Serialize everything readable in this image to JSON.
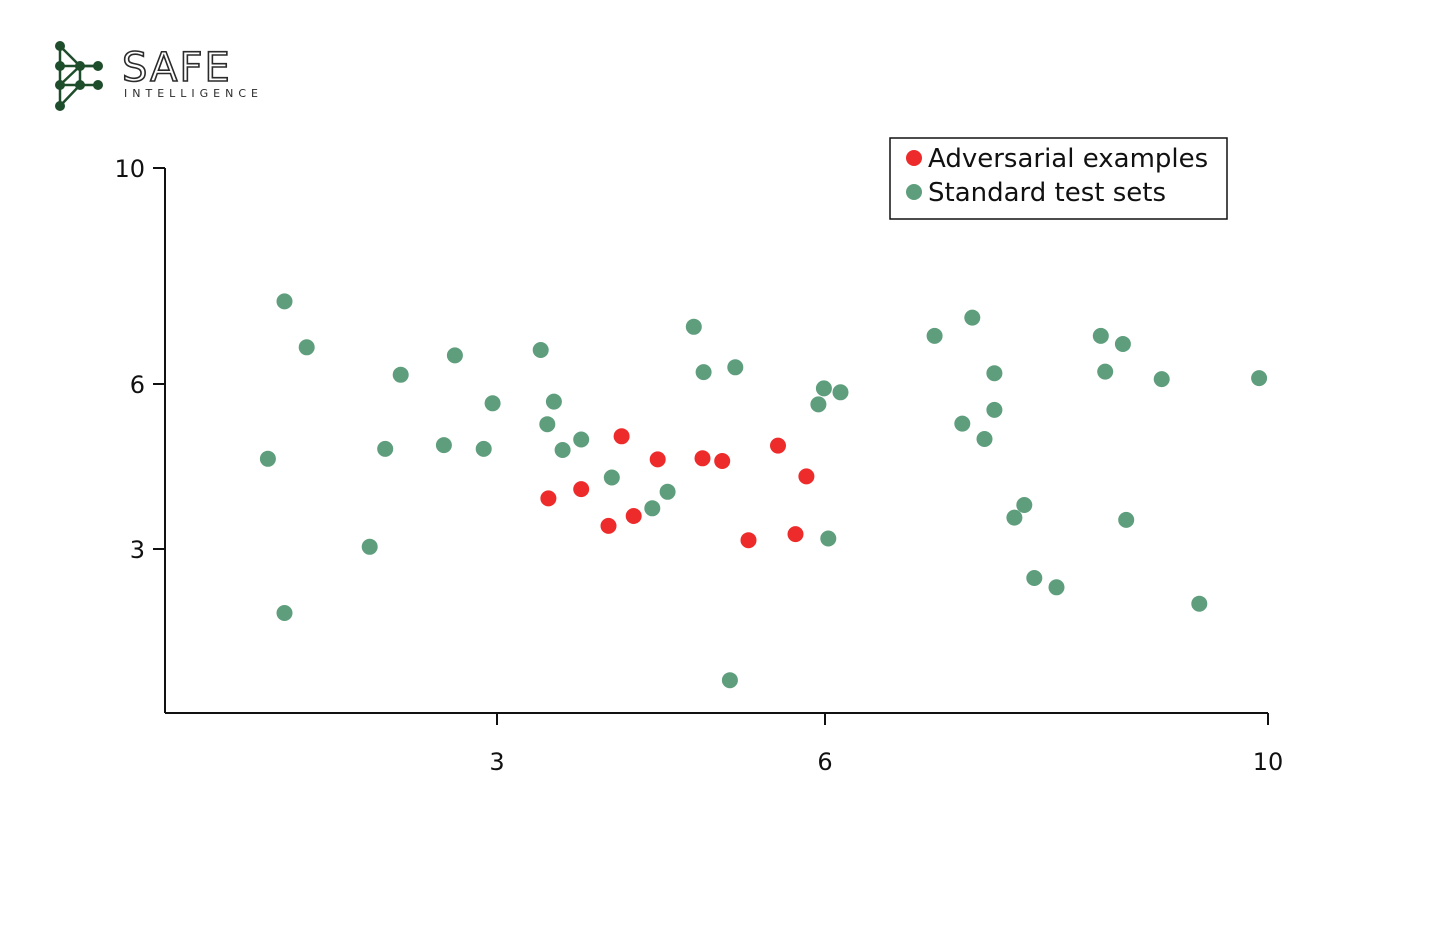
{
  "brand": {
    "name": "SAFE",
    "tagline": "INTELLIGENCE",
    "color": "#1e4d2b"
  },
  "chart_data": {
    "type": "scatter",
    "title": "",
    "xlabel": "",
    "ylabel": "",
    "xlim": [
      0.0,
      10.0
    ],
    "ylim": [
      0.0,
      10.0
    ],
    "xticks": [
      3,
      6,
      10
    ],
    "yticks": [
      3,
      6,
      10
    ],
    "grid": false,
    "legend_position": "top-right",
    "series": [
      {
        "name": "Adversarial examples",
        "color": "#ee2b2b",
        "points": [
          [
            3.47,
            3.92
          ],
          [
            3.77,
            4.09
          ],
          [
            4.02,
            3.42
          ],
          [
            4.14,
            5.05
          ],
          [
            4.25,
            3.6
          ],
          [
            4.47,
            4.63
          ],
          [
            4.88,
            4.65
          ],
          [
            5.06,
            4.6
          ],
          [
            5.3,
            3.16
          ],
          [
            5.57,
            4.88
          ],
          [
            5.73,
            3.27
          ],
          [
            5.83,
            4.32
          ]
        ]
      },
      {
        "name": "Standard test sets",
        "color": "#5e9e7c",
        "points": [
          [
            0.93,
            4.64
          ],
          [
            1.08,
            7.53
          ],
          [
            1.08,
            1.83
          ],
          [
            1.28,
            6.68
          ],
          [
            1.85,
            3.04
          ],
          [
            1.99,
            4.82
          ],
          [
            2.13,
            6.17
          ],
          [
            2.52,
            4.89
          ],
          [
            2.62,
            6.53
          ],
          [
            2.88,
            4.82
          ],
          [
            2.96,
            5.65
          ],
          [
            3.4,
            6.63
          ],
          [
            3.46,
            5.27
          ],
          [
            3.52,
            5.68
          ],
          [
            3.6,
            4.8
          ],
          [
            3.77,
            4.99
          ],
          [
            4.05,
            4.3
          ],
          [
            4.42,
            3.74
          ],
          [
            4.56,
            4.04
          ],
          [
            4.8,
            7.06
          ],
          [
            4.89,
            6.22
          ],
          [
            5.13,
            0.6
          ],
          [
            5.18,
            6.31
          ],
          [
            5.94,
            5.63
          ],
          [
            5.99,
            5.92
          ],
          [
            6.03,
            3.19
          ],
          [
            6.14,
            5.85
          ],
          [
            6.99,
            6.89
          ],
          [
            7.24,
            5.28
          ],
          [
            7.33,
            7.23
          ],
          [
            7.44,
            5.0
          ],
          [
            7.53,
            6.2
          ],
          [
            7.53,
            5.53
          ],
          [
            7.71,
            3.57
          ],
          [
            7.8,
            3.8
          ],
          [
            7.89,
            2.47
          ],
          [
            8.09,
            2.3
          ],
          [
            8.49,
            6.89
          ],
          [
            8.53,
            6.23
          ],
          [
            8.69,
            6.74
          ],
          [
            8.72,
            3.53
          ],
          [
            9.04,
            6.09
          ],
          [
            9.38,
            2.0
          ],
          [
            9.92,
            6.11
          ]
        ]
      }
    ]
  }
}
